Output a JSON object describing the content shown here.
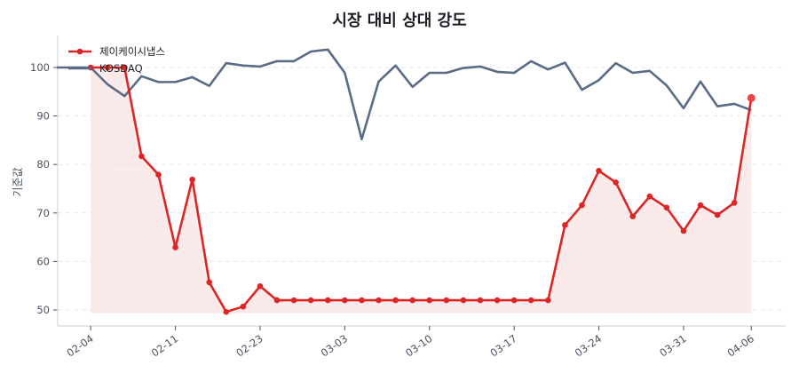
{
  "chart_data": {
    "type": "line",
    "title": "시장 대비 상대 강도",
    "xlabel": "",
    "ylabel": "기준값",
    "ylim": [
      47.5,
      106.5
    ],
    "yticks": [
      50,
      60,
      70,
      80,
      90,
      100
    ],
    "grid": true,
    "legend_position": "upper left",
    "xtick_labels": [
      "02-04",
      "02-11",
      "02-23",
      "03-03",
      "03-10",
      "03-17",
      "03-24",
      "03-31",
      "04-06"
    ],
    "xtick_index": [
      2,
      7,
      12,
      17,
      22,
      27,
      32,
      37,
      41
    ],
    "n_points": 42,
    "series": [
      {
        "name": "제이케이시냅스",
        "color": "#dc2626",
        "fill": "#f8dcdc",
        "marker": "circle",
        "start_index": 2,
        "values": [
          100,
          100,
          100,
          81.7,
          77.9,
          62.9,
          76.9,
          55.7,
          49.6,
          50.7,
          54.9,
          52.0,
          52.0,
          52.0,
          52.0,
          52.0,
          52.0,
          52.0,
          52.0,
          52.0,
          52.0,
          52.0,
          52.0,
          52.0,
          52.0,
          52.0,
          52.0,
          52.0,
          67.5,
          71.6,
          78.7,
          76.3,
          69.3,
          73.4,
          71.1,
          66.3,
          71.6,
          69.6,
          72.1,
          93.7
        ]
      },
      {
        "name": "KOSDAQ",
        "color": "#5a6b85",
        "marker": "none",
        "start_index": 0,
        "values": [
          100,
          100,
          100,
          96.5,
          94.1,
          98.2,
          97.0,
          97.0,
          98.0,
          96.2,
          100.9,
          100.4,
          100.2,
          101.3,
          101.3,
          103.3,
          103.7,
          98.9,
          85.2,
          97.1,
          100.4,
          96.0,
          98.9,
          98.9,
          99.9,
          100.2,
          99.1,
          98.9,
          101.3,
          99.6,
          101.0,
          95.4,
          97.4,
          100.9,
          98.9,
          99.3,
          96.3,
          91.6,
          97.1,
          92.0,
          92.5,
          91.2
        ]
      }
    ]
  }
}
